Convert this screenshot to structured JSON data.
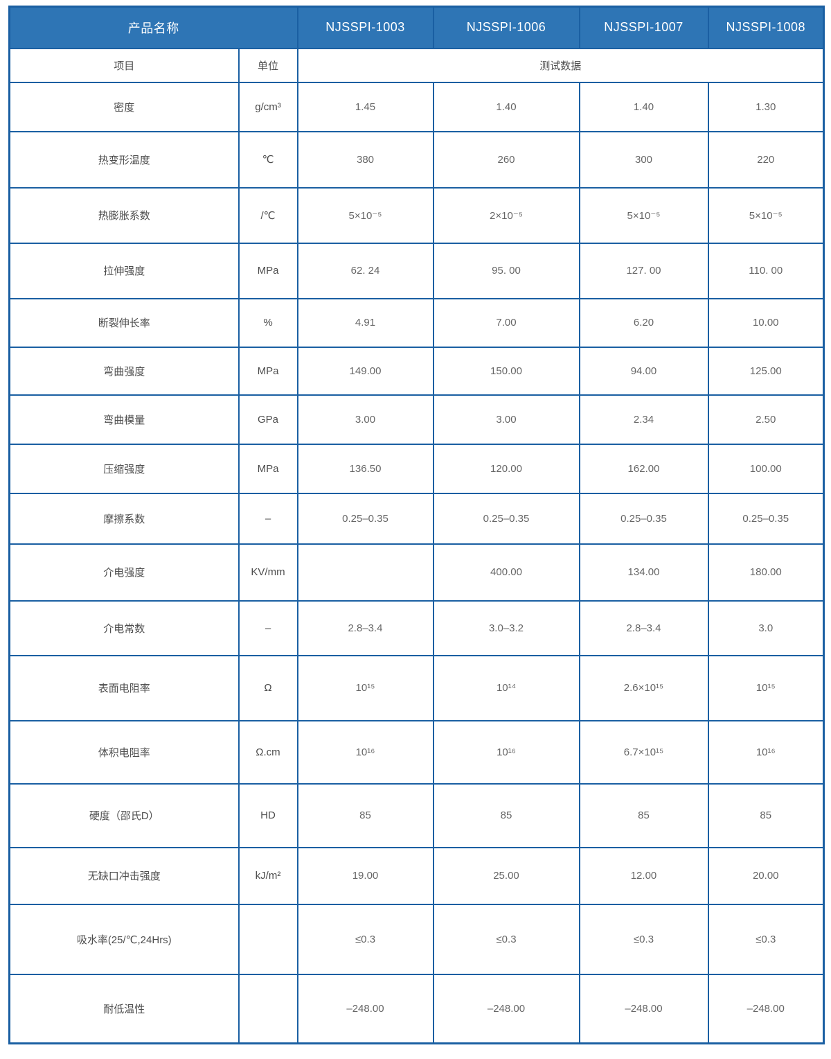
{
  "table": {
    "header": {
      "product_name_label": "产品名称",
      "products": [
        "NJSSPI-1003",
        "NJSSPI-1006",
        "NJSSPI-1007",
        "NJSSPI-1008"
      ]
    },
    "subheader": {
      "item_label": "项目",
      "unit_label": "单位",
      "test_data_label": "测试数据"
    },
    "rows": [
      {
        "item": "密度",
        "unit": "g/cm³",
        "values": [
          "1.45",
          "1.40",
          "1.40",
          "1.30"
        ]
      },
      {
        "item": "热变形温度",
        "unit": "℃",
        "values": [
          "380",
          "260",
          "300",
          "220"
        ]
      },
      {
        "item": "热膨胀系数",
        "unit": "/℃",
        "values": [
          "5×10⁻⁵",
          "2×10⁻⁵",
          "5×10⁻⁵",
          "5×10⁻⁵"
        ]
      },
      {
        "item": "拉伸强度",
        "unit": "MPa",
        "values": [
          "62. 24",
          "95. 00",
          "127. 00",
          "110. 00"
        ]
      },
      {
        "item": "断裂伸长率",
        "unit": "%",
        "values": [
          "4.91",
          "7.00",
          "6.20",
          "10.00"
        ]
      },
      {
        "item": "弯曲强度",
        "unit": "MPa",
        "values": [
          "149.00",
          "150.00",
          "94.00",
          "125.00"
        ]
      },
      {
        "item": "弯曲模量",
        "unit": "GPa",
        "values": [
          "3.00",
          "3.00",
          "2.34",
          "2.50"
        ]
      },
      {
        "item": "压缩强度",
        "unit": "MPa",
        "values": [
          "136.50",
          "120.00",
          "162.00",
          "100.00"
        ]
      },
      {
        "item": "摩擦系数",
        "unit": "–",
        "values": [
          "0.25–0.35",
          "0.25–0.35",
          "0.25–0.35",
          "0.25–0.35"
        ]
      },
      {
        "item": "介电强度",
        "unit": "KV/mm",
        "values": [
          "",
          "400.00",
          "134.00",
          "180.00"
        ]
      },
      {
        "item": "介电常数",
        "unit": "–",
        "values": [
          "2.8–3.4",
          "3.0–3.2",
          "2.8–3.4",
          "3.0"
        ]
      },
      {
        "item": "表面电阻率",
        "unit": "Ω",
        "values": [
          "10¹⁵",
          "10¹⁴",
          "2.6×10¹⁵",
          "10¹⁵"
        ]
      },
      {
        "item": "体积电阻率",
        "unit": "Ω.cm",
        "values": [
          "10¹⁶",
          "10¹⁶",
          "6.7×10¹⁵",
          "10¹⁶"
        ]
      },
      {
        "item": "硬度（邵氏D）",
        "unit": "HD",
        "values": [
          "85",
          "85",
          "85",
          "85"
        ]
      },
      {
        "item": "无缺口冲击强度",
        "unit": "kJ/m²",
        "values": [
          "19.00",
          "25.00",
          "12.00",
          "20.00"
        ]
      },
      {
        "item": "吸水率(25/℃,24Hrs)",
        "unit": "",
        "values": [
          "≤0.3",
          "≤0.3",
          "≤0.3",
          "≤0.3"
        ]
      },
      {
        "item": "耐低温性",
        "unit": "",
        "values": [
          "–248.00",
          "–248.00",
          "–248.00",
          "–248.00"
        ]
      }
    ]
  },
  "colors": {
    "header_bg": "#2e75b5",
    "border": "#1a5fa2",
    "header_text": "#ffffff",
    "item_text": "#4d4d4d",
    "value_text": "#666666"
  }
}
